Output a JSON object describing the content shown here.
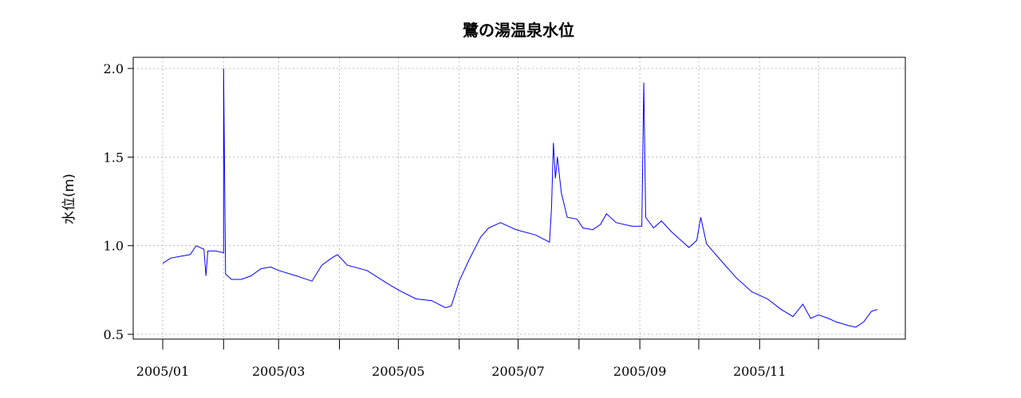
{
  "chart_data": {
    "type": "line",
    "title": "鷺の湯温泉水位",
    "xlabel": "",
    "ylabel": "水位(m)",
    "ylim": [
      0.5,
      2.0
    ],
    "xlim": [
      "2005-01-01",
      "2005-12-31"
    ],
    "y_ticks": [
      "0.5",
      "1.0",
      "1.5",
      "2.0"
    ],
    "x_tick_dates": [
      "2005-01-01",
      "2005-02-01",
      "2005-03-01",
      "2005-04-01",
      "2005-05-01",
      "2005-06-01",
      "2005-07-01",
      "2005-08-01",
      "2005-09-01",
      "2005-10-01",
      "2005-11-01",
      "2005-12-01"
    ],
    "x_labels": [
      {
        "date": "2005-01-01",
        "label": "2005/01"
      },
      {
        "date": "2005-03-01",
        "label": "2005/03"
      },
      {
        "date": "2005-05-01",
        "label": "2005/05"
      },
      {
        "date": "2005-07-01",
        "label": "2005/07"
      },
      {
        "date": "2005-09-01",
        "label": "2005/09"
      },
      {
        "date": "2005-11-01",
        "label": "2005/11"
      }
    ],
    "grid": true,
    "series": [
      {
        "color": "#0000ff",
        "points": [
          [
            "2005-01-01",
            0.9
          ],
          [
            "2005-01-05",
            0.93
          ],
          [
            "2005-01-10",
            0.94
          ],
          [
            "2005-01-15",
            0.95
          ],
          [
            "2005-01-18",
            1.0
          ],
          [
            "2005-01-22",
            0.98
          ],
          [
            "2005-01-23",
            0.83
          ],
          [
            "2005-01-24",
            0.97
          ],
          [
            "2005-01-28",
            0.97
          ],
          [
            "2005-02-01",
            0.96
          ],
          [
            "2005-02-01",
            1.27
          ],
          [
            "2005-02-01",
            2.0
          ],
          [
            "2005-02-02",
            0.84
          ],
          [
            "2005-02-05",
            0.81
          ],
          [
            "2005-02-10",
            0.81
          ],
          [
            "2005-02-15",
            0.83
          ],
          [
            "2005-02-20",
            0.87
          ],
          [
            "2005-02-25",
            0.88
          ],
          [
            "2005-03-01",
            0.86
          ],
          [
            "2005-03-10",
            0.83
          ],
          [
            "2005-03-18",
            0.8
          ],
          [
            "2005-03-23",
            0.89
          ],
          [
            "2005-03-28",
            0.93
          ],
          [
            "2005-03-31",
            0.95
          ],
          [
            "2005-04-05",
            0.89
          ],
          [
            "2005-04-15",
            0.86
          ],
          [
            "2005-04-25",
            0.79
          ],
          [
            "2005-05-01",
            0.75
          ],
          [
            "2005-05-10",
            0.7
          ],
          [
            "2005-05-18",
            0.69
          ],
          [
            "2005-05-25",
            0.65
          ],
          [
            "2005-05-28",
            0.66
          ],
          [
            "2005-06-01",
            0.8
          ],
          [
            "2005-06-06",
            0.92
          ],
          [
            "2005-06-12",
            1.05
          ],
          [
            "2005-06-16",
            1.1
          ],
          [
            "2005-06-22",
            1.13
          ],
          [
            "2005-06-30",
            1.09
          ],
          [
            "2005-07-10",
            1.06
          ],
          [
            "2005-07-17",
            1.02
          ],
          [
            "2005-07-18",
            1.21
          ],
          [
            "2005-07-19",
            1.58
          ],
          [
            "2005-07-20",
            1.38
          ],
          [
            "2005-07-21",
            1.5
          ],
          [
            "2005-07-23",
            1.3
          ],
          [
            "2005-07-26",
            1.16
          ],
          [
            "2005-07-31",
            1.15
          ],
          [
            "2005-08-03",
            1.1
          ],
          [
            "2005-08-08",
            1.09
          ],
          [
            "2005-08-12",
            1.12
          ],
          [
            "2005-08-15",
            1.18
          ],
          [
            "2005-08-20",
            1.13
          ],
          [
            "2005-08-28",
            1.11
          ],
          [
            "2005-09-02",
            1.11
          ],
          [
            "2005-09-03",
            1.92
          ],
          [
            "2005-09-04",
            1.16
          ],
          [
            "2005-09-08",
            1.1
          ],
          [
            "2005-09-12",
            1.14
          ],
          [
            "2005-09-17",
            1.08
          ],
          [
            "2005-09-22",
            1.03
          ],
          [
            "2005-09-26",
            0.99
          ],
          [
            "2005-09-30",
            1.03
          ],
          [
            "2005-10-02",
            1.16
          ],
          [
            "2005-10-05",
            1.01
          ],
          [
            "2005-10-12",
            0.92
          ],
          [
            "2005-10-20",
            0.82
          ],
          [
            "2005-10-28",
            0.74
          ],
          [
            "2005-11-05",
            0.7
          ],
          [
            "2005-11-12",
            0.64
          ],
          [
            "2005-11-18",
            0.6
          ],
          [
            "2005-11-23",
            0.67
          ],
          [
            "2005-11-27",
            0.59
          ],
          [
            "2005-12-01",
            0.61
          ],
          [
            "2005-12-06",
            0.59
          ],
          [
            "2005-12-10",
            0.57
          ],
          [
            "2005-12-16",
            0.55
          ],
          [
            "2005-12-20",
            0.54
          ],
          [
            "2005-12-24",
            0.57
          ],
          [
            "2005-12-28",
            0.63
          ],
          [
            "2005-12-31",
            0.64
          ]
        ]
      }
    ]
  }
}
